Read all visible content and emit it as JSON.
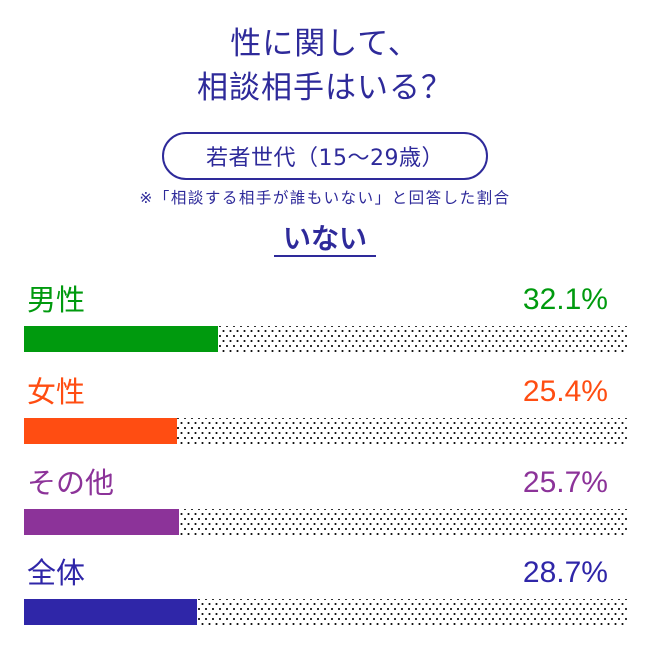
{
  "title": {
    "line1": "性に関して、",
    "line2": "相談相手はいる？"
  },
  "segment_pill": "若者世代（15〜29歳）",
  "note": "※「相談する相手が誰もいない」と回答した割合",
  "subheading": "いない",
  "rows": [
    {
      "label": "男性",
      "value": "32.1%",
      "pct": 32.1,
      "color": "#009a0e"
    },
    {
      "label": "女性",
      "value": "25.4%",
      "pct": 25.4,
      "color": "#ff4d12"
    },
    {
      "label": "その他",
      "value": "25.7%",
      "pct": 25.7,
      "color": "#8c3399"
    },
    {
      "label": "全体",
      "value": "28.7%",
      "pct": 28.7,
      "color": "#2f26a8"
    }
  ],
  "chart_data": {
    "type": "bar",
    "orientation": "horizontal",
    "title": "性に関して、相談相手はいる？",
    "subtitle": "若者世代（15〜29歳） ※「相談する相手が誰もいない」と回答した割合",
    "series_label": "いない",
    "categories": [
      "男性",
      "女性",
      "その他",
      "全体"
    ],
    "values": [
      32.1,
      25.4,
      25.7,
      28.7
    ],
    "unit": "%",
    "colors": [
      "#009a0e",
      "#ff4d12",
      "#8c3399",
      "#2f26a8"
    ],
    "xlim": [
      0,
      100
    ],
    "grid": false,
    "legend": false,
    "background_track": "dotted pattern representing remainder to 100%"
  }
}
